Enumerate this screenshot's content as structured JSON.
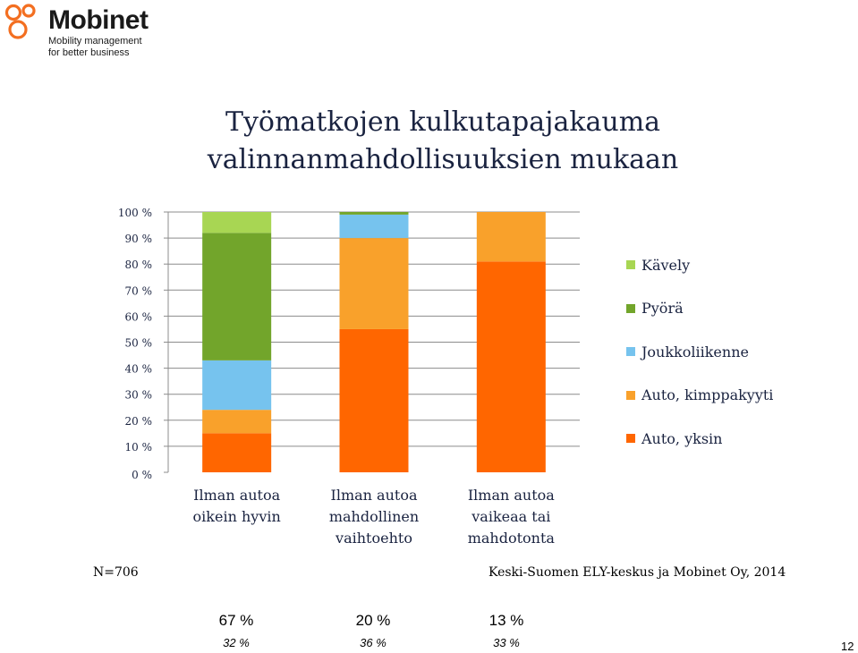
{
  "logo": {
    "name": "Mobinet",
    "tagline_line1": "Mobility management",
    "tagline_line2": "for better business",
    "ring_color": "#f36f21"
  },
  "title": {
    "line1": "Työmatkojen kulkutapajakauma",
    "line2": "valinnanmahdollisuuksien mukaan"
  },
  "chart_data": {
    "type": "bar",
    "stacked": true,
    "categories": [
      [
        "Ilman autoa",
        "oikein hyvin"
      ],
      [
        "Ilman autoa",
        "mahdollinen",
        "vaihtoehto"
      ],
      [
        "Ilman autoa",
        "vaikeaa tai",
        "mahdotonta"
      ]
    ],
    "series": [
      {
        "name": "Auto, yksin",
        "color": "#ff6600",
        "values": [
          15,
          55,
          81
        ]
      },
      {
        "name": "Auto, kimppakyyti",
        "color": "#f9a12b",
        "values": [
          9,
          35,
          19
        ]
      },
      {
        "name": "Joukkoliikenne",
        "color": "#76c3ee",
        "values": [
          19,
          9,
          0
        ]
      },
      {
        "name": "Pyörä",
        "color": "#72a52b",
        "values": [
          49,
          1,
          0
        ]
      },
      {
        "name": "Kävely",
        "color": "#a8d653",
        "values": [
          8,
          0,
          0
        ]
      }
    ],
    "ylim": [
      0,
      100
    ],
    "yticks": [
      "0 %",
      "10 %",
      "20 %",
      "30 %",
      "40 %",
      "50 %",
      "60 %",
      "70 %",
      "80 %",
      "90 %",
      "100 %"
    ],
    "grid": true,
    "legend_position": "right"
  },
  "footer": {
    "n_label": "N=706",
    "source": "Keski-Suomen ELY-keskus ja Mobinet Oy, 2014",
    "shares_main": [
      "67 %",
      "20 %",
      "13 %"
    ],
    "shares_sub": [
      "32 %",
      "36 %",
      "33 %"
    ],
    "page_number": "12"
  }
}
